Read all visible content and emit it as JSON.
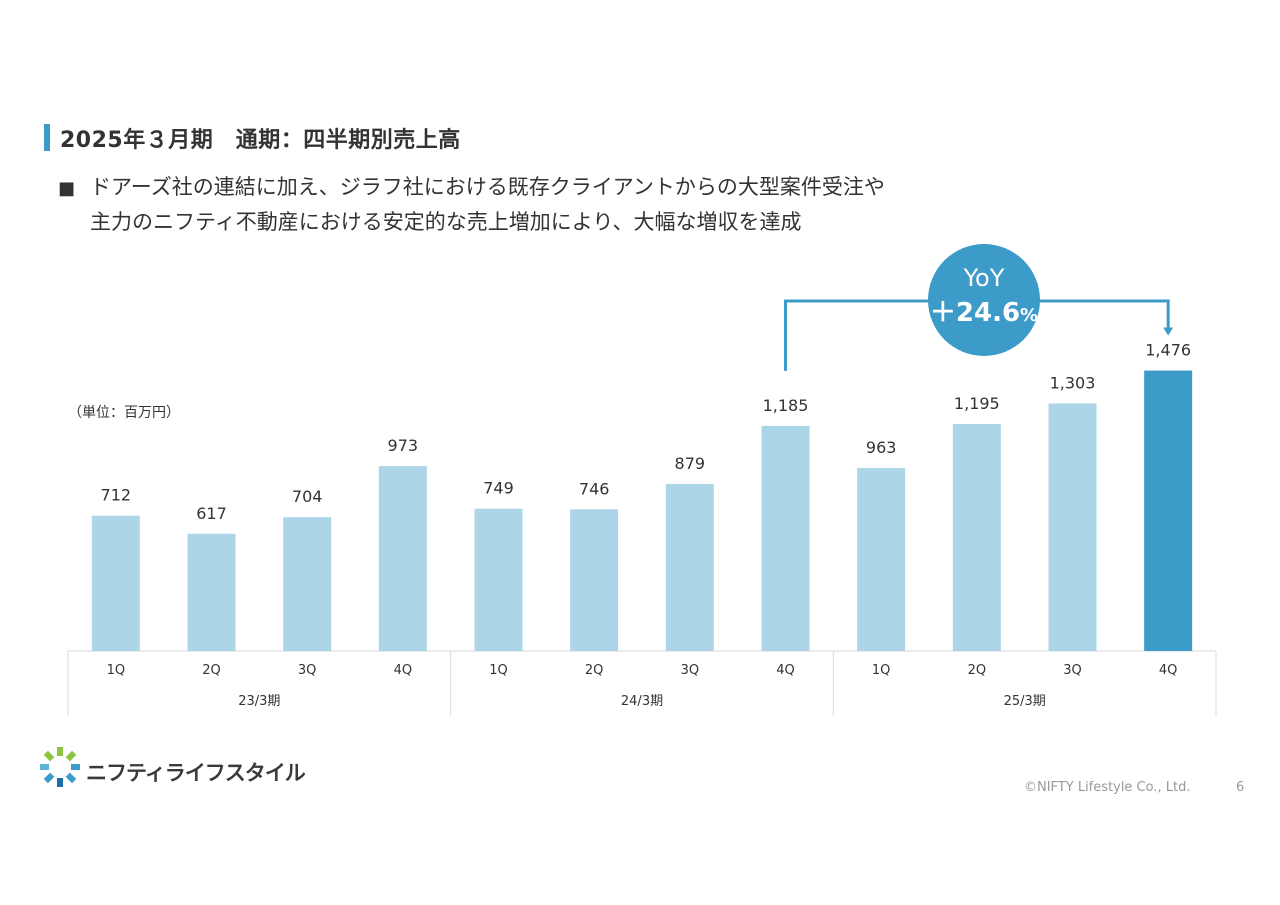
{
  "header": {
    "title": "2025年３月期　通期：四半期別売上高"
  },
  "description": {
    "bullet": "■",
    "line1": "ドアーズ社の連結に加え、ジラフ社における既存クライアントからの大型案件受注や",
    "line2": "主力のニフティ不動産における安定的な売上増加により、大幅な増収を達成"
  },
  "unit_label": "（単位：百万円）",
  "yoy": {
    "label": "YoY",
    "value": "＋24.6",
    "pct": "%"
  },
  "chart_data": {
    "type": "bar",
    "title": "",
    "ylabel": "",
    "ylim": [
      0,
      1600
    ],
    "groups": [
      {
        "label": "23/3期",
        "categories": [
          "1Q",
          "2Q",
          "3Q",
          "4Q"
        ],
        "values": [
          712,
          617,
          704,
          973
        ],
        "labels": [
          "712",
          "617",
          "704",
          "973"
        ]
      },
      {
        "label": "24/3期",
        "categories": [
          "1Q",
          "2Q",
          "3Q",
          "4Q"
        ],
        "values": [
          749,
          746,
          879,
          1185
        ],
        "labels": [
          "749",
          "746",
          "879",
          "1,185"
        ]
      },
      {
        "label": "25/3期",
        "categories": [
          "1Q",
          "2Q",
          "3Q",
          "4Q"
        ],
        "values": [
          963,
          1195,
          1303,
          1476
        ],
        "labels": [
          "963",
          "1,195",
          "1,303",
          "1,476"
        ]
      }
    ],
    "colors": {
      "bar": "#acd5e8",
      "highlight": "#3d9bc9"
    },
    "highlight": {
      "group": 2,
      "index": 3
    },
    "comparison": {
      "from": {
        "group": 1,
        "index": 3
      },
      "to": {
        "group": 2,
        "index": 3
      }
    }
  },
  "footer": {
    "logo_text": "ニフティライフスタイル",
    "copyright": "©NIFTY Lifestyle Co., Ltd.",
    "page": "6"
  },
  "colors": {
    "accent": "#3d9bc9"
  }
}
